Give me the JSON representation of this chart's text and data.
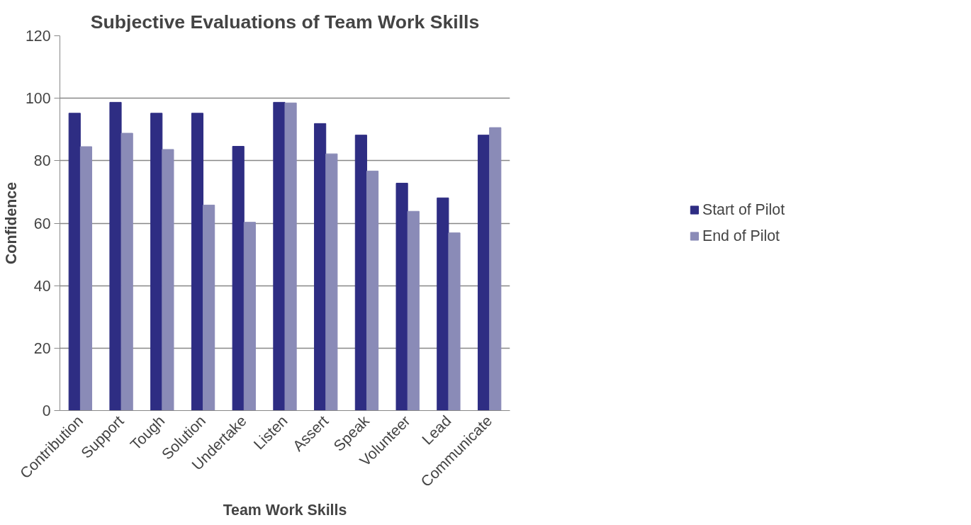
{
  "chart_data": {
    "type": "bar",
    "title": "Subjective Evaluations of Team Work Skills",
    "xlabel": "Team Work Skills",
    "ylabel": "Confidence",
    "categories": [
      "Contribution",
      "Support",
      "Tough",
      "Solution",
      "Undertake",
      "Listen",
      "Assert",
      "Speak",
      "Volunteer",
      "Lead",
      "Communicate"
    ],
    "series": [
      {
        "name": "Start of Pilot",
        "color": "#2e2d83",
        "values": [
          95.2,
          98.7,
          95.2,
          95.2,
          84.6,
          98.7,
          91.9,
          88.2,
          72.8,
          68.1,
          88.2
        ]
      },
      {
        "name": "End of Pilot",
        "color": "#8a8bb7",
        "values": [
          84.5,
          88.8,
          83.6,
          65.8,
          60.3,
          98.5,
          82.2,
          76.7,
          63.8,
          56.9,
          90.6
        ]
      }
    ],
    "ylim": [
      0,
      120
    ],
    "yticks": [
      0,
      20,
      40,
      60,
      80,
      100,
      120
    ],
    "grid": "y",
    "legend": "right"
  }
}
